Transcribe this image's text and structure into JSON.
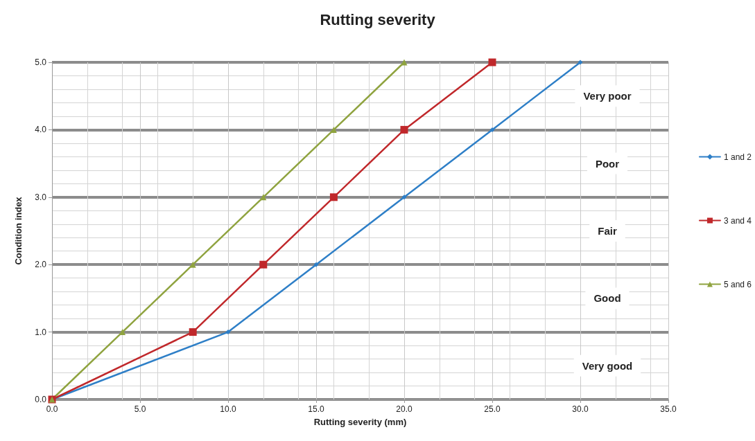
{
  "chart_data": {
    "type": "line",
    "title": "Rutting severity",
    "xlabel": "Rutting severity (mm)",
    "ylabel": "Condition index",
    "xlim": [
      0,
      35
    ],
    "ylim": [
      0,
      5
    ],
    "xticks": [
      {
        "value": 0,
        "label": "0.0"
      },
      {
        "value": 5,
        "label": "5.0"
      },
      {
        "value": 10,
        "label": "10.0"
      },
      {
        "value": 15,
        "label": "15.0"
      },
      {
        "value": 20,
        "label": "20.0"
      },
      {
        "value": 25,
        "label": "25.0"
      },
      {
        "value": 30,
        "label": "30.0"
      },
      {
        "value": 35,
        "label": "35.0"
      }
    ],
    "yticks": [
      {
        "value": 0,
        "label": "0.0"
      },
      {
        "value": 1,
        "label": "1.0"
      },
      {
        "value": 2,
        "label": "2.0"
      },
      {
        "value": 3,
        "label": "3.0"
      },
      {
        "value": 4,
        "label": "4.0"
      },
      {
        "value": 5,
        "label": "5.0"
      }
    ],
    "grid": true,
    "legend": "right",
    "line_style": "solid",
    "series": [
      {
        "name": "1 and 2",
        "color": "#2e7fc7",
        "marker": "diamond",
        "x": [
          0,
          10,
          15,
          20,
          25,
          30
        ],
        "values": [
          0,
          1,
          2,
          3,
          4,
          5
        ]
      },
      {
        "name": "3 and 4",
        "color": "#c0282b",
        "marker": "square",
        "x": [
          0,
          8,
          12,
          16,
          20,
          25
        ],
        "values": [
          0,
          1,
          2,
          3,
          4,
          5
        ]
      },
      {
        "name": "5 and 6",
        "color": "#8fa33f",
        "marker": "triangle",
        "x": [
          0,
          4,
          8,
          12,
          16,
          20
        ],
        "values": [
          0,
          1,
          2,
          3,
          4,
          5
        ]
      }
    ],
    "annotations": [
      "Very poor",
      "Poor",
      "Fair",
      "Good",
      "Very good"
    ]
  }
}
